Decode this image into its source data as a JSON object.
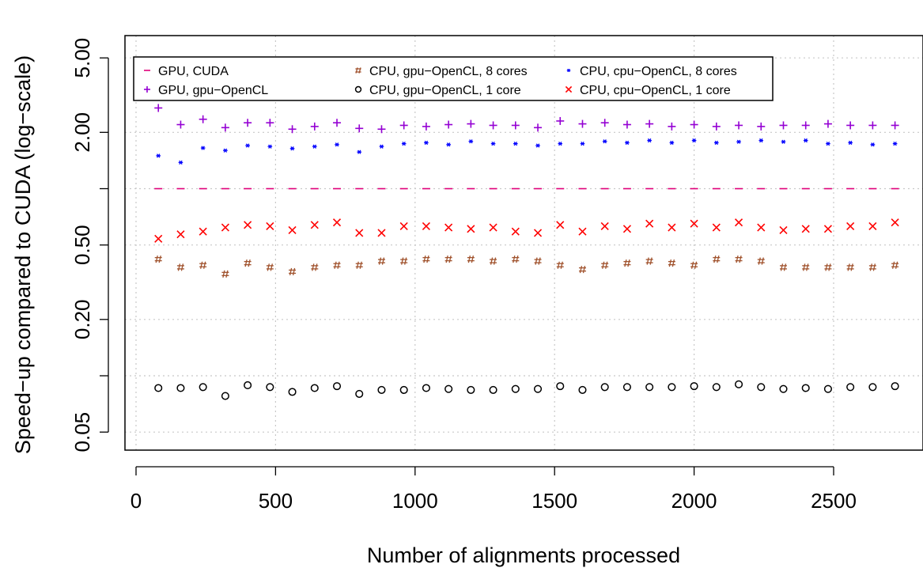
{
  "chart_data": {
    "type": "scatter",
    "xlabel": "Number of alignments processed",
    "ylabel": "Speed−up compared to CUDA (log−scale)",
    "x_scale": "linear",
    "y_scale": "log",
    "xlim": [
      -30,
      2800
    ],
    "ylim": [
      0.04,
      6.5
    ],
    "x_ticks": [
      0,
      500,
      1000,
      1500,
      2000,
      2500
    ],
    "x_tick_labels": [
      "0",
      "500",
      "1000",
      "1500",
      "2000",
      "2500"
    ],
    "y_ticks": [
      0.05,
      0.2,
      0.5,
      2,
      5
    ],
    "y_tick_labels": [
      "0.05",
      "0.20",
      "0.50",
      "2.00",
      "5.00"
    ],
    "y_minor_ticks": [
      0.1,
      1
    ],
    "grid": "dotted",
    "legend_position": "top-left",
    "x": [
      80,
      160,
      240,
      320,
      400,
      480,
      560,
      640,
      720,
      800,
      880,
      960,
      1040,
      1120,
      1200,
      1280,
      1360,
      1440,
      1520,
      1600,
      1680,
      1760,
      1840,
      1920,
      2000,
      2080,
      2160,
      2240,
      2320,
      2400,
      2480,
      2560,
      2640,
      2720
    ],
    "series": [
      {
        "name": "GPU, CUDA",
        "marker": "−",
        "color": "#e0007a",
        "values": [
          1,
          1,
          1,
          1,
          1,
          1,
          1,
          1,
          1,
          1,
          1,
          1,
          1,
          1,
          1,
          1,
          1,
          1,
          1,
          1,
          1,
          1,
          1,
          1,
          1,
          1,
          1,
          1,
          1,
          1,
          1,
          1,
          1,
          1
        ]
      },
      {
        "name": "GPU, gpu−OpenCL",
        "marker": "+",
        "color": "#9400d3",
        "values": [
          2.7,
          2.2,
          2.35,
          2.12,
          2.25,
          2.25,
          2.08,
          2.15,
          2.25,
          2.1,
          2.08,
          2.18,
          2.15,
          2.2,
          2.22,
          2.18,
          2.18,
          2.12,
          2.3,
          2.22,
          2.25,
          2.2,
          2.22,
          2.15,
          2.2,
          2.15,
          2.18,
          2.15,
          2.18,
          2.18,
          2.22,
          2.18,
          2.18,
          2.18
        ]
      },
      {
        "name": "CPU, gpu−OpenCL, 8 cores",
        "marker": "#",
        "color": "#a0522d",
        "values": [
          0.42,
          0.38,
          0.39,
          0.35,
          0.4,
          0.38,
          0.36,
          0.38,
          0.39,
          0.39,
          0.41,
          0.41,
          0.42,
          0.42,
          0.42,
          0.41,
          0.42,
          0.41,
          0.39,
          0.37,
          0.39,
          0.4,
          0.41,
          0.4,
          0.39,
          0.42,
          0.42,
          0.41,
          0.38,
          0.38,
          0.38,
          0.38,
          0.38,
          0.39
        ]
      },
      {
        "name": "CPU, cpu−OpenCL, 8 cores",
        "marker": "*",
        "color": "#0000ff",
        "values": [
          1.5,
          1.38,
          1.65,
          1.6,
          1.7,
          1.68,
          1.64,
          1.68,
          1.72,
          1.57,
          1.68,
          1.74,
          1.76,
          1.72,
          1.79,
          1.74,
          1.74,
          1.7,
          1.74,
          1.74,
          1.79,
          1.76,
          1.81,
          1.76,
          1.81,
          1.76,
          1.78,
          1.81,
          1.78,
          1.81,
          1.74,
          1.76,
          1.72,
          1.74
        ]
      },
      {
        "name": "CPU, gpu−OpenCL, 1 core",
        "marker": "o",
        "color": "#000000",
        "values": [
          0.086,
          0.086,
          0.087,
          0.078,
          0.089,
          0.087,
          0.082,
          0.086,
          0.088,
          0.08,
          0.084,
          0.084,
          0.086,
          0.085,
          0.084,
          0.084,
          0.085,
          0.085,
          0.088,
          0.084,
          0.087,
          0.087,
          0.087,
          0.087,
          0.088,
          0.087,
          0.09,
          0.087,
          0.085,
          0.086,
          0.085,
          0.087,
          0.087,
          0.088
        ]
      },
      {
        "name": "CPU, cpu−OpenCL, 1 core",
        "marker": "x",
        "color": "#ff0000",
        "values": [
          0.54,
          0.57,
          0.59,
          0.62,
          0.64,
          0.63,
          0.6,
          0.64,
          0.66,
          0.58,
          0.58,
          0.63,
          0.63,
          0.62,
          0.61,
          0.62,
          0.59,
          0.58,
          0.64,
          0.59,
          0.63,
          0.61,
          0.65,
          0.62,
          0.65,
          0.62,
          0.66,
          0.62,
          0.6,
          0.61,
          0.61,
          0.63,
          0.63,
          0.66
        ]
      }
    ],
    "legend_columns": [
      [
        "GPU, CUDA",
        "GPU, gpu−OpenCL"
      ],
      [
        "CPU, gpu−OpenCL, 8 cores",
        "CPU, gpu−OpenCL, 1 core"
      ],
      [
        "CPU, cpu−OpenCL, 8 cores",
        "CPU, cpu−OpenCL, 1 core"
      ]
    ]
  }
}
